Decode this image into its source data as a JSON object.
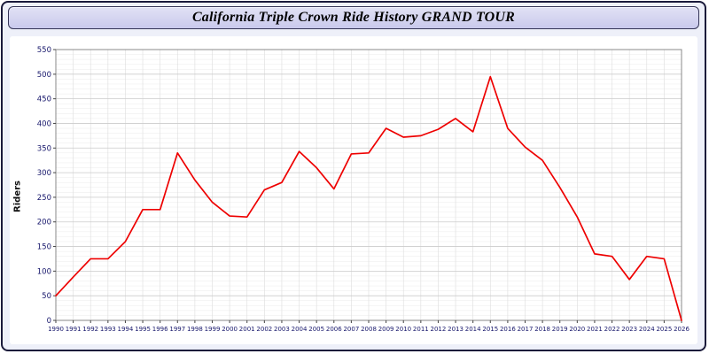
{
  "header": {
    "title": "California Triple Crown Ride History GRAND TOUR"
  },
  "chart_data": {
    "type": "line",
    "title": "California Triple Crown Ride History GRAND TOUR",
    "xlabel": "",
    "ylabel": "Riders",
    "ylim": [
      0,
      550
    ],
    "ytick_step": 50,
    "grid": true,
    "legend_position": "none",
    "tick_color": "#16166b",
    "axis_color": "#888888",
    "grid_major_color": "#cccccc",
    "grid_minor_color": "#ebebeb",
    "x": [
      1990,
      1991,
      1992,
      1993,
      1994,
      1995,
      1996,
      1997,
      1998,
      1999,
      2000,
      2001,
      2002,
      2003,
      2004,
      2005,
      2006,
      2007,
      2008,
      2009,
      2010,
      2011,
      2012,
      2013,
      2014,
      2015,
      2016,
      2017,
      2018,
      2019,
      2020,
      2021,
      2022,
      2023,
      2024,
      2025,
      2026
    ],
    "series": [
      {
        "name": "Riders",
        "color": "#ee0000",
        "values": [
          50,
          88,
          125,
          125,
          160,
          225,
          225,
          340,
          285,
          240,
          212,
          210,
          265,
          280,
          343,
          310,
          267,
          338,
          340,
          390,
          372,
          375,
          388,
          410,
          383,
          495,
          390,
          352,
          325,
          270,
          210,
          135,
          130,
          83,
          130,
          125,
          0
        ]
      }
    ]
  }
}
